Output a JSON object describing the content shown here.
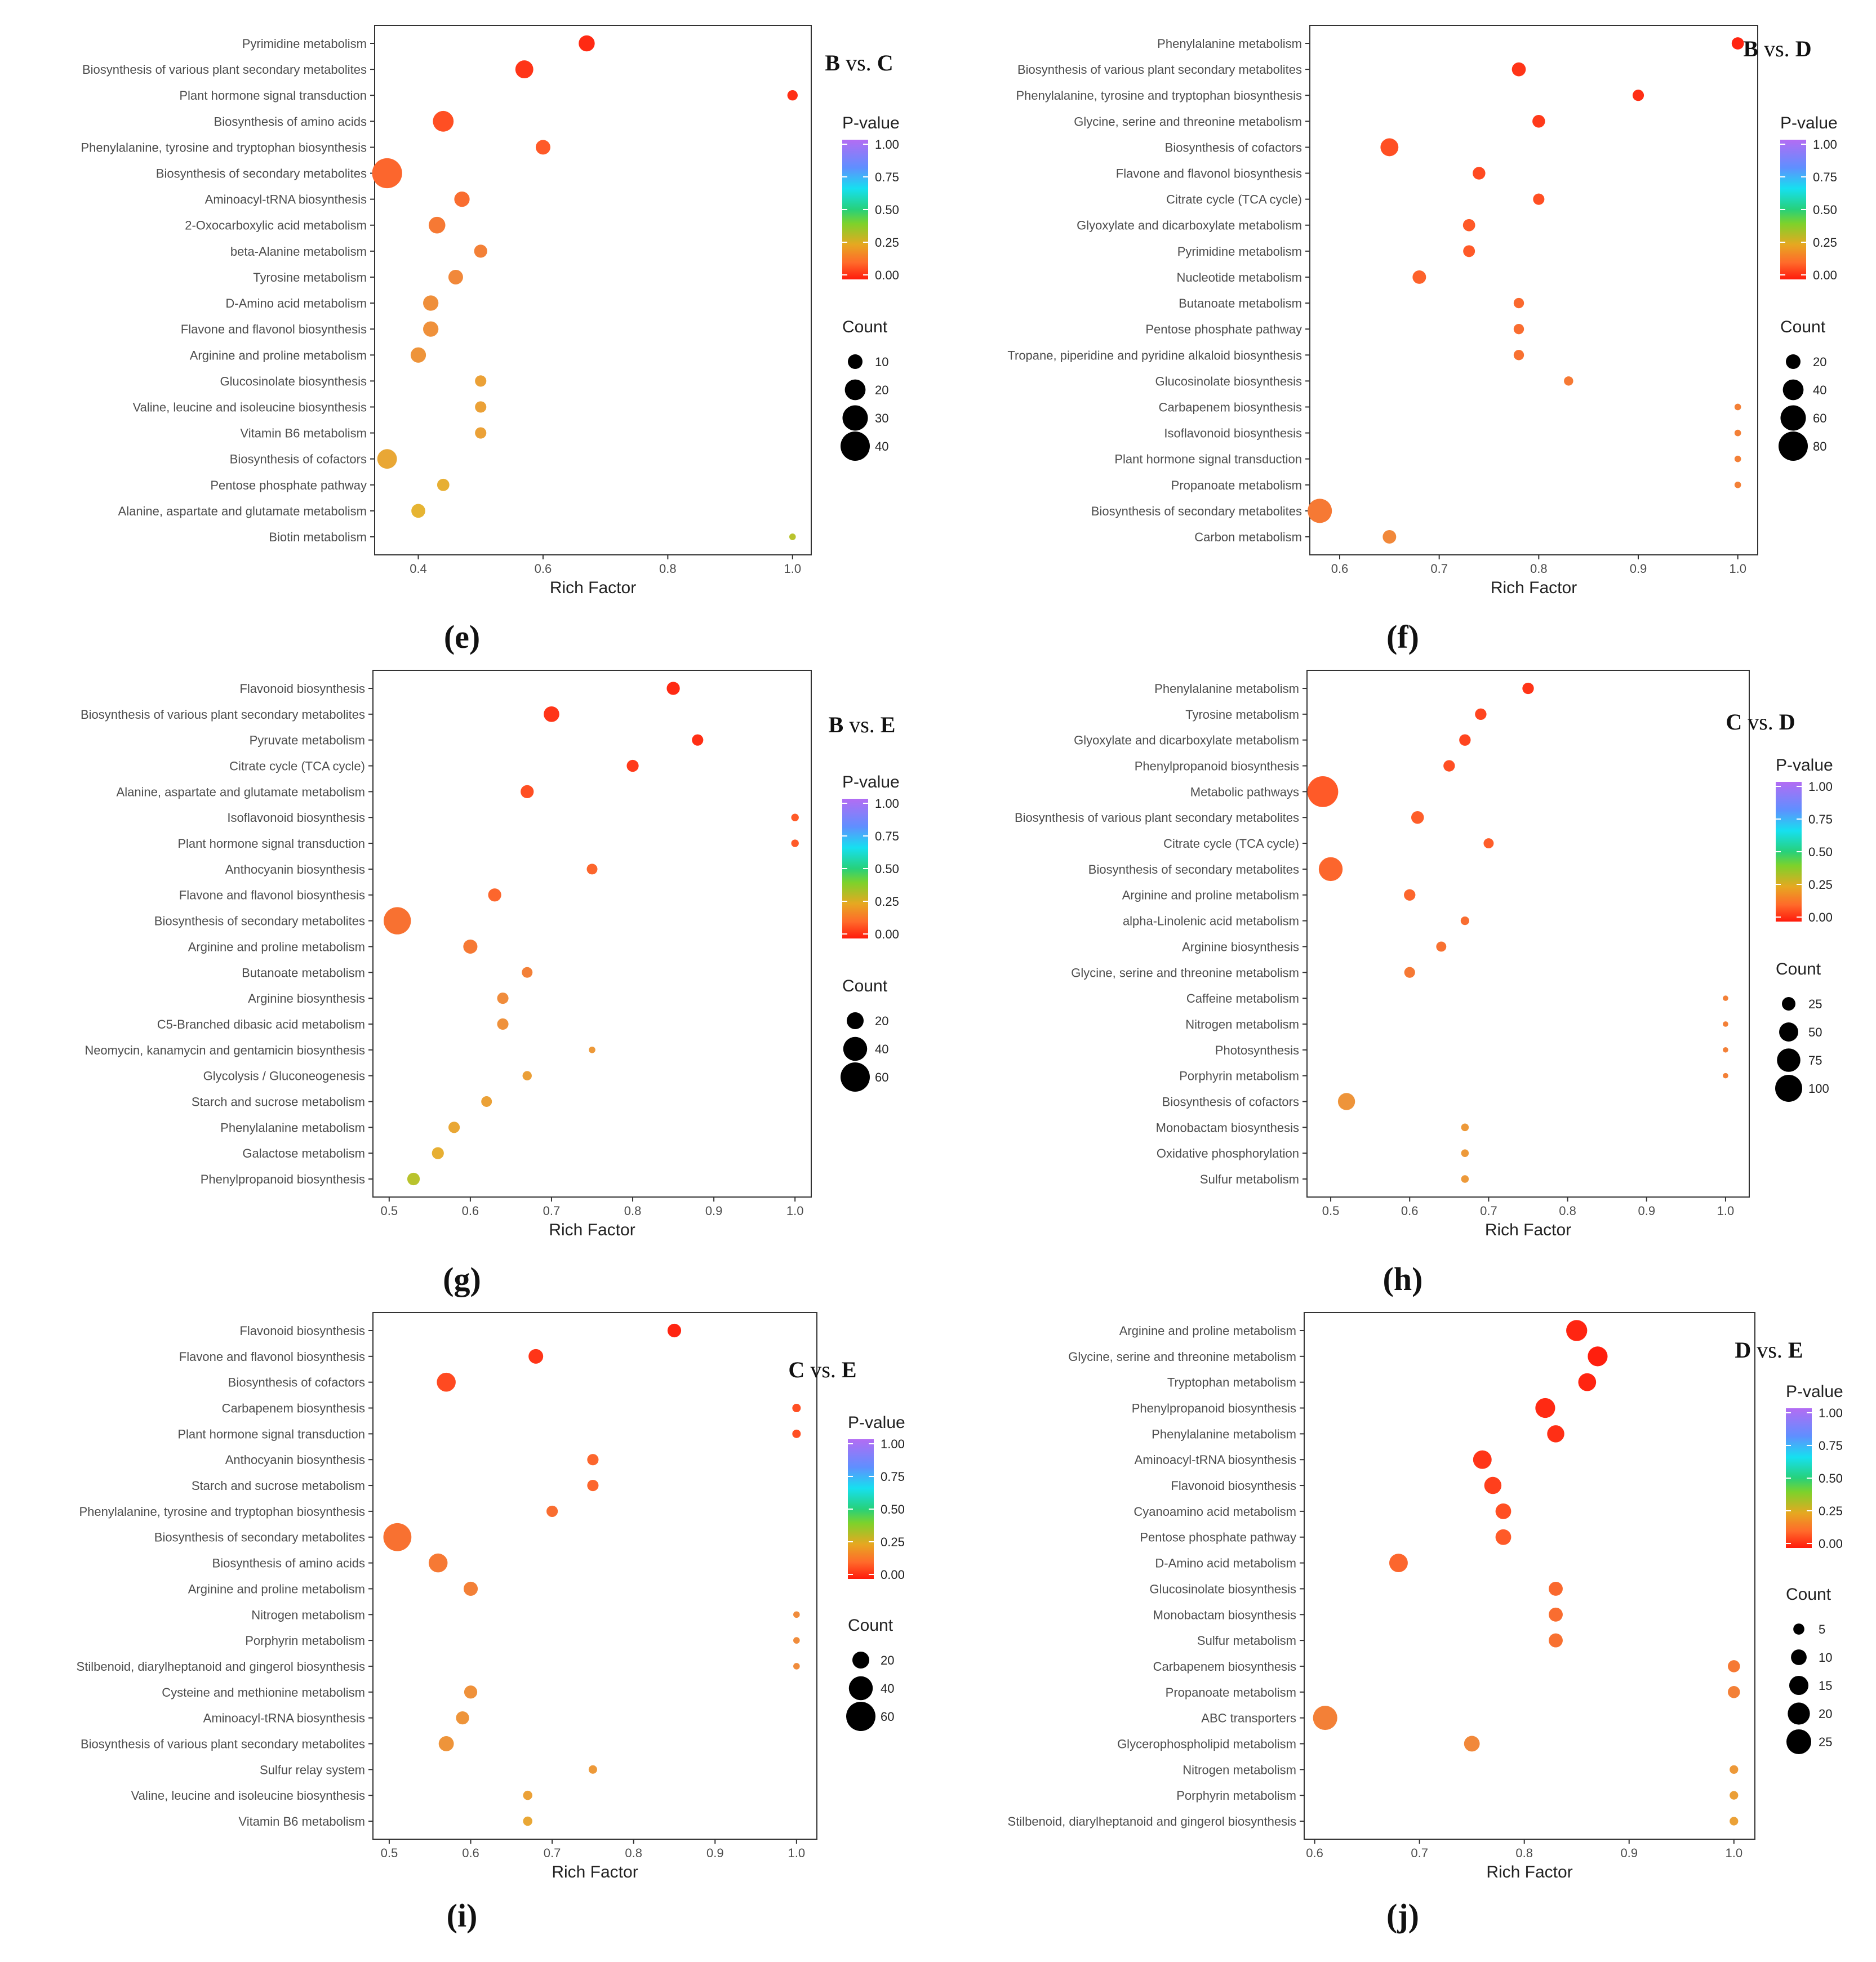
{
  "chart_data": [
    {
      "type": "scatter",
      "panel": "(e)",
      "comparison": {
        "a": "B",
        "vs": "vs.",
        "b": "C"
      },
      "xlabel": "Rich Factor",
      "xlim": [
        0.33,
        1.03
      ],
      "xticks": [
        0.4,
        0.6,
        0.8,
        1.0
      ],
      "xtick_labels": [
        "0.4",
        "0.6",
        "0.8",
        "1.0"
      ],
      "categories": [
        "Pyrimidine metabolism",
        "Biosynthesis of various plant secondary metabolites",
        "Plant hormone signal transduction",
        "Biosynthesis of amino acids",
        "Phenylalanine, tyrosine and tryptophan biosynthesis",
        "Biosynthesis of secondary metabolites",
        "Aminoacyl-tRNA biosynthesis",
        "2-Oxocarboxylic acid metabolism",
        "beta-Alanine metabolism",
        "Tyrosine metabolism",
        "D-Amino acid metabolism",
        "Flavone and flavonol biosynthesis",
        "Arginine and proline metabolism",
        "Glucosinolate biosynthesis",
        "Valine, leucine and isoleucine biosynthesis",
        "Vitamin B6 metabolism",
        "Biosynthesis of cofactors",
        "Pentose phosphate pathway",
        "Alanine, aspartate and glutamate metabolism",
        "Biotin metabolism"
      ],
      "rich_factor": [
        0.67,
        0.57,
        1.0,
        0.44,
        0.6,
        0.35,
        0.47,
        0.43,
        0.5,
        0.46,
        0.42,
        0.42,
        0.4,
        0.5,
        0.5,
        0.5,
        0.35,
        0.44,
        0.4,
        1.0
      ],
      "count": [
        12,
        15,
        5,
        20,
        10,
        42,
        11,
        13,
        8,
        10,
        11,
        11,
        11,
        6,
        6,
        6,
        18,
        7,
        9,
        2
      ],
      "p_value": [
        0.03,
        0.05,
        0.04,
        0.1,
        0.12,
        0.15,
        0.17,
        0.2,
        0.22,
        0.24,
        0.26,
        0.27,
        0.28,
        0.33,
        0.33,
        0.33,
        0.35,
        0.38,
        0.4,
        0.45
      ],
      "legend": {
        "pvalue_title": "P-value",
        "pvalue_ticks": [
          "1.00",
          "0.75",
          "0.50",
          "0.25",
          "0.00"
        ],
        "count_title": "Count",
        "count_values": [
          10,
          20,
          30,
          40
        ],
        "count_labels": [
          "10",
          "20",
          "30",
          "40"
        ]
      }
    },
    {
      "type": "scatter",
      "panel": "(f)",
      "comparison": {
        "a": "B",
        "vs": "vs.",
        "b": "D"
      },
      "xlabel": "Rich Factor",
      "xlim": [
        0.57,
        1.02
      ],
      "xticks": [
        0.6,
        0.7,
        0.8,
        0.9,
        1.0
      ],
      "xtick_labels": [
        "0.6",
        "0.7",
        "0.8",
        "0.9",
        "1.0"
      ],
      "categories": [
        "Phenylalanine metabolism",
        "Biosynthesis of various plant secondary metabolites",
        "Phenylalanine, tyrosine and tryptophan biosynthesis",
        "Glycine, serine and threonine metabolism",
        "Biosynthesis of cofactors",
        "Flavone and flavonol biosynthesis",
        "Citrate cycle (TCA cycle)",
        "Glyoxylate and dicarboxylate metabolism",
        "Pyrimidine metabolism",
        "Nucleotide metabolism",
        "Butanoate metabolism",
        "Pentose phosphate pathway",
        "Tropane, piperidine and pyridine alkaloid biosynthesis",
        "Glucosinolate biosynthesis",
        "Carbapenem biosynthesis",
        "Isoflavonoid biosynthesis",
        "Plant hormone signal transduction",
        "Propanoate metabolism",
        "Biosynthesis of secondary metabolites",
        "Carbon metabolism"
      ],
      "rich_factor": [
        1.0,
        0.78,
        0.9,
        0.8,
        0.65,
        0.74,
        0.8,
        0.73,
        0.73,
        0.68,
        0.78,
        0.78,
        0.78,
        0.83,
        1.0,
        1.0,
        1.0,
        1.0,
        0.58,
        0.65
      ],
      "count": [
        14,
        18,
        12,
        15,
        30,
        15,
        12,
        14,
        13,
        17,
        10,
        10,
        10,
        8,
        4,
        4,
        4,
        4,
        55,
        17
      ],
      "p_value": [
        0.02,
        0.05,
        0.04,
        0.06,
        0.1,
        0.09,
        0.1,
        0.12,
        0.12,
        0.14,
        0.16,
        0.17,
        0.18,
        0.2,
        0.22,
        0.22,
        0.22,
        0.22,
        0.2,
        0.24
      ],
      "legend": {
        "pvalue_title": "P-value",
        "pvalue_ticks": [
          "1.00",
          "0.75",
          "0.50",
          "0.25",
          "0.00"
        ],
        "count_title": "Count",
        "count_values": [
          20,
          40,
          60,
          80
        ],
        "count_labels": [
          "20",
          "40",
          "60",
          "80"
        ]
      }
    },
    {
      "type": "scatter",
      "panel": "(g)",
      "comparison": {
        "a": "B",
        "vs": "vs.",
        "b": "E"
      },
      "xlabel": "Rich Factor",
      "xlim": [
        0.48,
        1.02
      ],
      "xticks": [
        0.5,
        0.6,
        0.7,
        0.8,
        0.9,
        1.0
      ],
      "xtick_labels": [
        "0.5",
        "0.6",
        "0.7",
        "0.8",
        "0.9",
        "1.0"
      ],
      "categories": [
        "Flavonoid biosynthesis",
        "Biosynthesis of various plant secondary metabolites",
        "Pyruvate metabolism",
        "Citrate cycle (TCA cycle)",
        "Alanine, aspartate and glutamate metabolism",
        "Isoflavonoid biosynthesis",
        "Plant hormone signal transduction",
        "Anthocyanin biosynthesis",
        "Flavone and flavonol biosynthesis",
        "Biosynthesis of secondary metabolites",
        "Arginine and proline metabolism",
        "Butanoate metabolism",
        "Arginine biosynthesis",
        "C5-Branched dibasic acid metabolism",
        "Neomycin, kanamycin and gentamicin biosynthesis",
        "Glycolysis / Gluconeogenesis",
        "Starch and sucrose metabolism",
        "Phenylalanine metabolism",
        "Galactose metabolism",
        "Phenylpropanoid biosynthesis"
      ],
      "rich_factor": [
        0.85,
        0.7,
        0.88,
        0.8,
        0.67,
        1.0,
        1.0,
        0.75,
        0.63,
        0.51,
        0.6,
        0.67,
        0.64,
        0.64,
        0.75,
        0.67,
        0.62,
        0.58,
        0.56,
        0.53
      ],
      "count": [
        12,
        17,
        9,
        10,
        12,
        4,
        4,
        8,
        12,
        52,
        14,
        8,
        9,
        9,
        3,
        6,
        8,
        9,
        10,
        11
      ],
      "p_value": [
        0.03,
        0.05,
        0.04,
        0.06,
        0.1,
        0.12,
        0.12,
        0.15,
        0.15,
        0.18,
        0.2,
        0.22,
        0.25,
        0.27,
        0.3,
        0.32,
        0.33,
        0.35,
        0.38,
        0.45
      ],
      "legend": {
        "pvalue_title": "P-value",
        "pvalue_ticks": [
          "1.00",
          "0.75",
          "0.50",
          "0.25",
          "0.00"
        ],
        "count_title": "Count",
        "count_values": [
          20,
          40,
          60
        ],
        "count_labels": [
          "20",
          "40",
          "60"
        ]
      }
    },
    {
      "type": "scatter",
      "panel": "(h)",
      "comparison": {
        "a": "C",
        "vs": "vs.",
        "b": "D"
      },
      "xlabel": "Rich Factor",
      "xlim": [
        0.47,
        1.03
      ],
      "xticks": [
        0.5,
        0.6,
        0.7,
        0.8,
        0.9,
        1.0
      ],
      "xtick_labels": [
        "0.5",
        "0.6",
        "0.7",
        "0.8",
        "0.9",
        "1.0"
      ],
      "categories": [
        "Phenylalanine metabolism",
        "Tyrosine metabolism",
        "Glyoxylate and dicarboxylate metabolism",
        "Phenylpropanoid biosynthesis",
        "Metabolic pathways",
        "Biosynthesis of various plant secondary metabolites",
        "Citrate cycle (TCA cycle)",
        "Biosynthesis of secondary metabolites",
        "Arginine and proline metabolism",
        "alpha-Linolenic acid metabolism",
        "Arginine biosynthesis",
        "Glycine, serine and threonine metabolism",
        "Caffeine metabolism",
        "Nitrogen metabolism",
        "Photosynthesis",
        "Porphyrin metabolism",
        "Biosynthesis of cofactors",
        "Monobactam biosynthesis",
        "Oxidative phosphorylation",
        "Sulfur metabolism"
      ],
      "rich_factor": [
        0.75,
        0.69,
        0.67,
        0.65,
        0.49,
        0.61,
        0.7,
        0.5,
        0.6,
        0.67,
        0.64,
        0.6,
        1.0,
        1.0,
        1.0,
        1.0,
        0.52,
        0.67,
        0.67,
        0.67
      ],
      "count": [
        18,
        18,
        18,
        18,
        130,
        22,
        14,
        78,
        18,
        10,
        14,
        16,
        4,
        4,
        4,
        4,
        40,
        8,
        8,
        8
      ],
      "p_value": [
        0.05,
        0.08,
        0.08,
        0.1,
        0.12,
        0.13,
        0.13,
        0.15,
        0.15,
        0.17,
        0.18,
        0.2,
        0.22,
        0.22,
        0.22,
        0.22,
        0.28,
        0.3,
        0.3,
        0.3
      ],
      "legend": {
        "pvalue_title": "P-value",
        "pvalue_ticks": [
          "1.00",
          "0.75",
          "0.50",
          "0.25",
          "0.00"
        ],
        "count_title": "Count",
        "count_values": [
          25,
          50,
          75,
          100
        ],
        "count_labels": [
          "25",
          "50",
          "75",
          "100"
        ]
      }
    },
    {
      "type": "scatter",
      "panel": "(i)",
      "comparison": {
        "a": "C",
        "vs": "vs.",
        "b": "E"
      },
      "xlabel": "Rich Factor",
      "xlim": [
        0.48,
        1.025
      ],
      "xticks": [
        0.5,
        0.6,
        0.7,
        0.8,
        0.9,
        1.0
      ],
      "xtick_labels": [
        "0.5",
        "0.6",
        "0.7",
        "0.8",
        "0.9",
        "1.0"
      ],
      "categories": [
        "Flavonoid biosynthesis",
        "Flavone and flavonol biosynthesis",
        "Biosynthesis of cofactors",
        "Carbapenem biosynthesis",
        "Plant hormone signal transduction",
        "Anthocyanin biosynthesis",
        "Starch and sucrose metabolism",
        "Phenylalanine, tyrosine and tryptophan biosynthesis",
        "Biosynthesis of secondary metabolites",
        "Biosynthesis of amino acids",
        "Arginine and proline metabolism",
        "Nitrogen metabolism",
        "Porphyrin metabolism",
        "Stilbenoid, diarylheptanoid and gingerol biosynthesis",
        "Cysteine and methionine metabolism",
        "Aminoacyl-tRNA biosynthesis",
        "Biosynthesis of various plant secondary metabolites",
        "Sulfur relay system",
        "Valine, leucine and isoleucine biosynthesis",
        "Vitamin B6 metabolism"
      ],
      "rich_factor": [
        0.85,
        0.68,
        0.57,
        1.0,
        1.0,
        0.75,
        0.75,
        0.7,
        0.51,
        0.56,
        0.6,
        1.0,
        1.0,
        1.0,
        0.6,
        0.59,
        0.57,
        0.75,
        0.67,
        0.67
      ],
      "count": [
        13,
        15,
        25,
        5,
        5,
        9,
        9,
        9,
        55,
        25,
        14,
        3,
        3,
        3,
        12,
        12,
        16,
        5,
        6,
        6
      ],
      "p_value": [
        0.02,
        0.05,
        0.09,
        0.1,
        0.1,
        0.15,
        0.15,
        0.17,
        0.18,
        0.2,
        0.22,
        0.25,
        0.25,
        0.25,
        0.27,
        0.28,
        0.28,
        0.3,
        0.33,
        0.35
      ],
      "legend": {
        "pvalue_title": "P-value",
        "pvalue_ticks": [
          "1.00",
          "0.75",
          "0.50",
          "0.25",
          "0.00"
        ],
        "count_title": "Count",
        "count_values": [
          20,
          40,
          60
        ],
        "count_labels": [
          "20",
          "40",
          "60"
        ]
      }
    },
    {
      "type": "scatter",
      "panel": "(j)",
      "comparison": {
        "a": "D",
        "vs": "vs.",
        "b": "E"
      },
      "xlabel": "Rich Factor",
      "xlim": [
        0.59,
        1.02
      ],
      "xticks": [
        0.6,
        0.7,
        0.8,
        0.9,
        1.0
      ],
      "xtick_labels": [
        "0.6",
        "0.7",
        "0.8",
        "0.9",
        "1.0"
      ],
      "categories": [
        "Arginine and proline metabolism",
        "Glycine, serine and threonine metabolism",
        "Tryptophan metabolism",
        "Phenylpropanoid biosynthesis",
        "Phenylalanine metabolism",
        "Aminoacyl-tRNA biosynthesis",
        "Flavonoid biosynthesis",
        "Cyanoamino acid metabolism",
        "Pentose phosphate pathway",
        "D-Amino acid metabolism",
        "Glucosinolate biosynthesis",
        "Monobactam biosynthesis",
        "Sulfur metabolism",
        "Carbapenem biosynthesis",
        "Propanoate metabolism",
        "ABC transporters",
        "Glycerophospholipid metabolism",
        "Nitrogen metabolism",
        "Porphyrin metabolism",
        "Stilbenoid, diarylheptanoid and gingerol biosynthesis"
      ],
      "rich_factor": [
        0.85,
        0.87,
        0.86,
        0.82,
        0.83,
        0.76,
        0.77,
        0.78,
        0.78,
        0.68,
        0.83,
        0.83,
        0.83,
        1.0,
        1.0,
        0.61,
        0.75,
        1.0,
        1.0,
        1.0
      ],
      "count": [
        18,
        16,
        13,
        16,
        12,
        14,
        12,
        10,
        10,
        14,
        8,
        8,
        8,
        6,
        6,
        24,
        10,
        3,
        3,
        3
      ],
      "p_value": [
        0.02,
        0.01,
        0.02,
        0.03,
        0.04,
        0.05,
        0.07,
        0.1,
        0.12,
        0.15,
        0.16,
        0.17,
        0.18,
        0.2,
        0.22,
        0.22,
        0.24,
        0.3,
        0.32,
        0.33
      ],
      "legend": {
        "pvalue_title": "P-value",
        "pvalue_ticks": [
          "1.00",
          "0.75",
          "0.50",
          "0.25",
          "0.00"
        ],
        "count_title": "Count",
        "count_values": [
          5,
          10,
          15,
          20,
          25
        ],
        "count_labels": [
          "5",
          "10",
          "15",
          "20",
          "25"
        ]
      }
    }
  ]
}
